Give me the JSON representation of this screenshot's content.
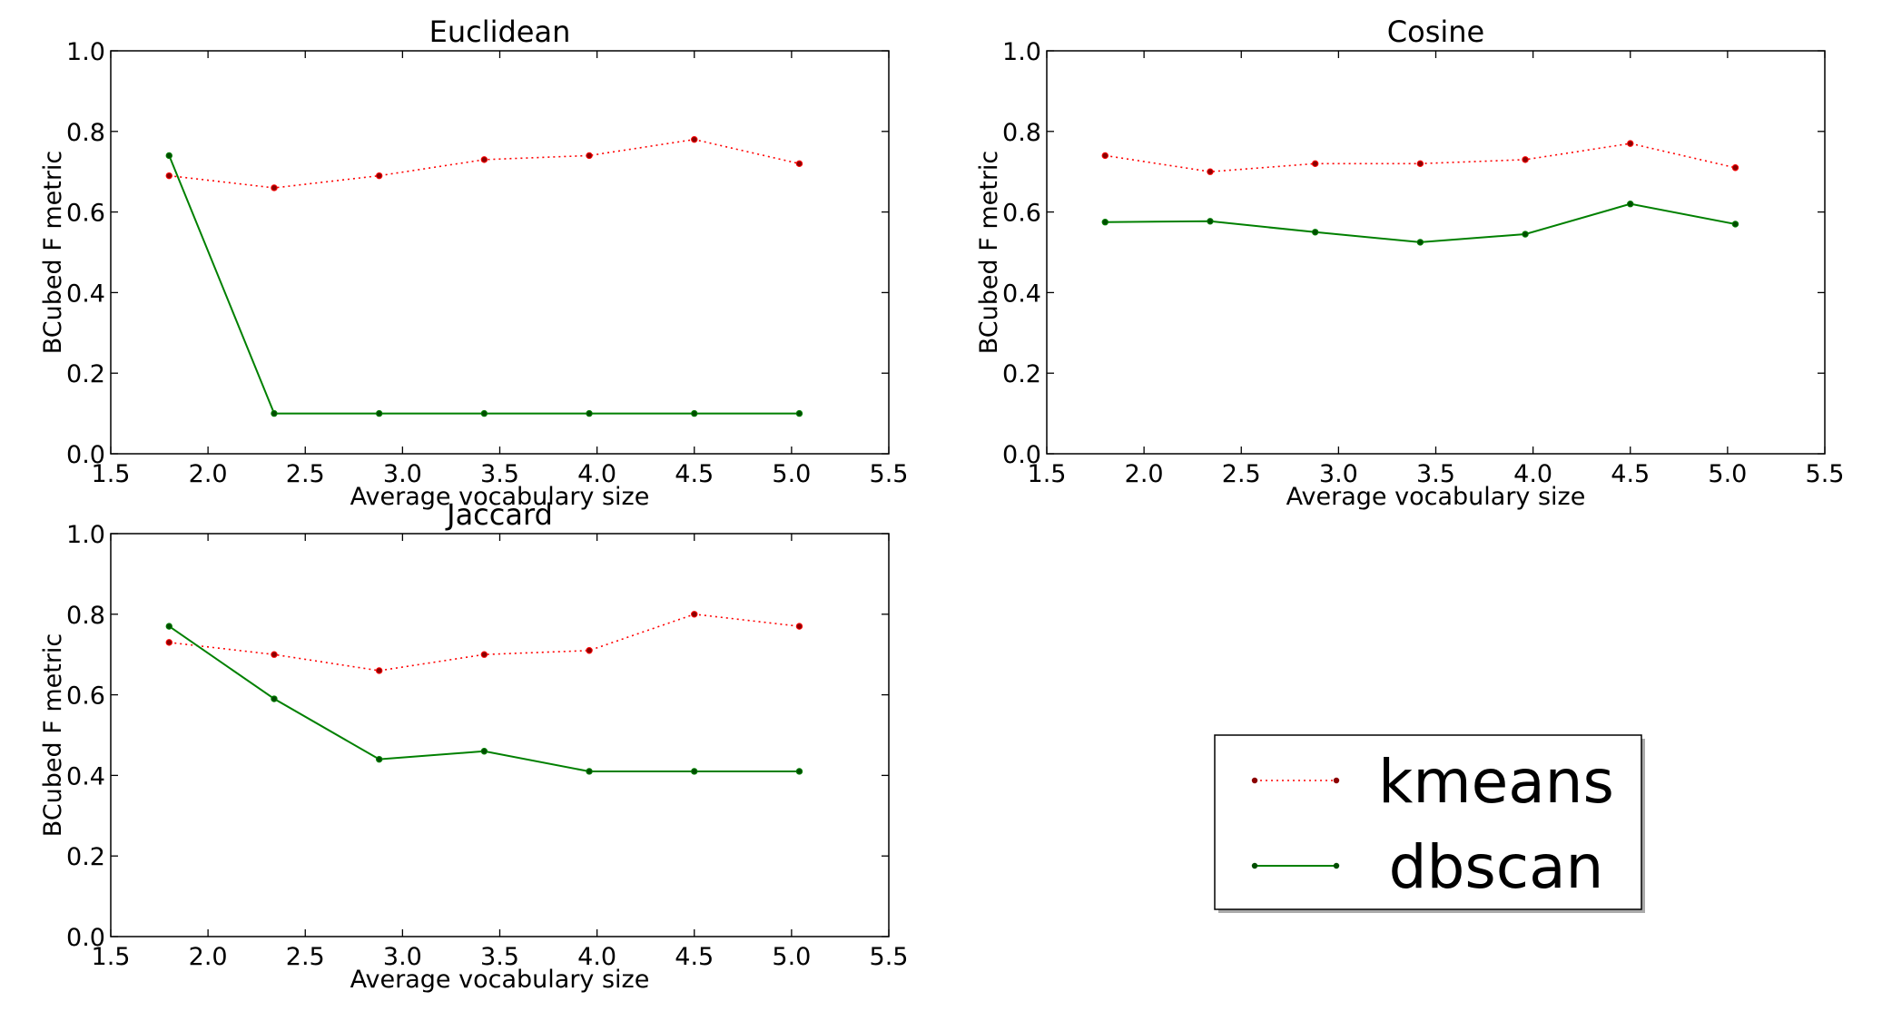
{
  "chart_data": [
    {
      "type": "line",
      "title": "Euclidean",
      "xlabel": "Average vocabulary size",
      "ylabel": "BCubed F metric",
      "xlim": [
        1.5,
        5.5
      ],
      "ylim": [
        0.0,
        1.0
      ],
      "xticks": [
        "1.5",
        "2.0",
        "2.5",
        "3.0",
        "3.5",
        "4.0",
        "4.5",
        "5.0",
        "5.5"
      ],
      "yticks": [
        "0.0",
        "0.2",
        "0.4",
        "0.6",
        "0.8",
        "1.0"
      ],
      "grid": false,
      "x": [
        1.8,
        2.34,
        2.88,
        3.42,
        3.96,
        4.5,
        5.04
      ],
      "series": [
        {
          "name": "kmeans",
          "color": "#ff0000",
          "style": "dotted",
          "values": [
            0.69,
            0.66,
            0.69,
            0.73,
            0.74,
            0.78,
            0.72
          ]
        },
        {
          "name": "dbscan",
          "color": "#008000",
          "style": "solid",
          "values": [
            0.74,
            0.1,
            0.1,
            0.1,
            0.1,
            0.1,
            0.1
          ]
        }
      ]
    },
    {
      "type": "line",
      "title": "Cosine",
      "xlabel": "Average vocabulary size",
      "ylabel": "BCubed F metric",
      "xlim": [
        1.5,
        5.5
      ],
      "ylim": [
        0.0,
        1.0
      ],
      "xticks": [
        "1.5",
        "2.0",
        "2.5",
        "3.0",
        "3.5",
        "4.0",
        "4.5",
        "5.0",
        "5.5"
      ],
      "yticks": [
        "0.0",
        "0.2",
        "0.4",
        "0.6",
        "0.8",
        "1.0"
      ],
      "grid": false,
      "x": [
        1.8,
        2.34,
        2.88,
        3.42,
        3.96,
        4.5,
        5.04
      ],
      "series": [
        {
          "name": "kmeans",
          "color": "#ff0000",
          "style": "dotted",
          "values": [
            0.74,
            0.7,
            0.72,
            0.72,
            0.73,
            0.77,
            0.71
          ]
        },
        {
          "name": "dbscan",
          "color": "#008000",
          "style": "solid",
          "values": [
            0.575,
            0.577,
            0.55,
            0.525,
            0.545,
            0.62,
            0.57
          ]
        }
      ]
    },
    {
      "type": "line",
      "title": "Jaccard",
      "xlabel": "Average vocabulary size",
      "ylabel": "BCubed F metric",
      "xlim": [
        1.5,
        5.5
      ],
      "ylim": [
        0.0,
        1.0
      ],
      "xticks": [
        "1.5",
        "2.0",
        "2.5",
        "3.0",
        "3.5",
        "4.0",
        "4.5",
        "5.0",
        "5.5"
      ],
      "yticks": [
        "0.0",
        "0.2",
        "0.4",
        "0.6",
        "0.8",
        "1.0"
      ],
      "grid": false,
      "x": [
        1.8,
        2.34,
        2.88,
        3.42,
        3.96,
        4.5,
        5.04
      ],
      "series": [
        {
          "name": "kmeans",
          "color": "#ff0000",
          "style": "dotted",
          "values": [
            0.73,
            0.7,
            0.66,
            0.7,
            0.71,
            0.8,
            0.77
          ]
        },
        {
          "name": "dbscan",
          "color": "#008000",
          "style": "solid",
          "values": [
            0.77,
            0.59,
            0.44,
            0.46,
            0.41,
            0.41,
            0.41
          ]
        }
      ]
    }
  ],
  "legend": {
    "placement": "lower-right",
    "entries": [
      {
        "label": "kmeans",
        "color": "#ff0000",
        "style": "dotted"
      },
      {
        "label": "dbscan",
        "color": "#008000",
        "style": "solid"
      }
    ]
  }
}
